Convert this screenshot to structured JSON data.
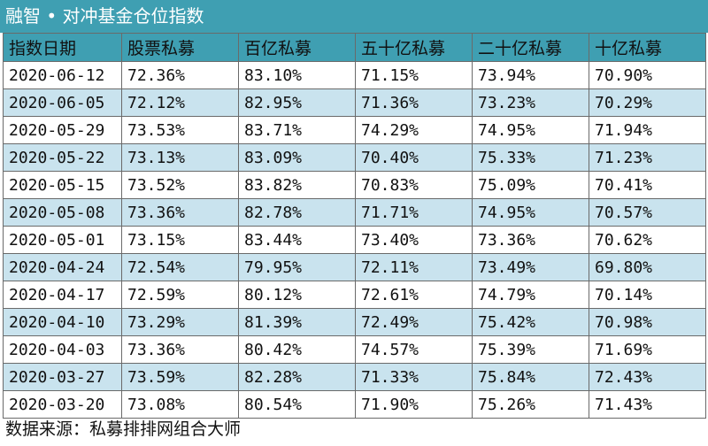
{
  "title": "融智 • 对冲基金仓位指数",
  "source": "数据来源：私募排排网组合大师",
  "chart_data": {
    "type": "table",
    "columns": [
      "指数日期",
      "股票私募",
      "百亿私募",
      "五十亿私募",
      "二十亿私募",
      "十亿私募"
    ],
    "rows": [
      [
        "2020-06-12",
        "72.36%",
        "83.10%",
        "71.15%",
        "73.94%",
        "70.90%"
      ],
      [
        "2020-06-05",
        "72.12%",
        "82.95%",
        "71.36%",
        "73.23%",
        "70.29%"
      ],
      [
        "2020-05-29",
        "73.53%",
        "83.71%",
        "74.29%",
        "74.95%",
        "71.94%"
      ],
      [
        "2020-05-22",
        "73.13%",
        "83.09%",
        "70.40%",
        "75.33%",
        "71.23%"
      ],
      [
        "2020-05-15",
        "73.52%",
        "83.82%",
        "70.83%",
        "75.09%",
        "70.41%"
      ],
      [
        "2020-05-08",
        "73.36%",
        "82.78%",
        "71.71%",
        "74.95%",
        "70.57%"
      ],
      [
        "2020-05-01",
        "73.15%",
        "83.44%",
        "73.40%",
        "73.36%",
        "70.62%"
      ],
      [
        "2020-04-24",
        "72.54%",
        "79.95%",
        "72.11%",
        "73.49%",
        "69.80%"
      ],
      [
        "2020-04-17",
        "72.59%",
        "80.12%",
        "72.61%",
        "74.79%",
        "70.14%"
      ],
      [
        "2020-04-10",
        "73.29%",
        "81.39%",
        "72.49%",
        "75.42%",
        "70.98%"
      ],
      [
        "2020-04-03",
        "73.36%",
        "80.42%",
        "74.57%",
        "75.39%",
        "71.69%"
      ],
      [
        "2020-03-27",
        "73.59%",
        "82.28%",
        "71.33%",
        "75.84%",
        "72.43%"
      ],
      [
        "2020-03-20",
        "73.08%",
        "80.54%",
        "71.90%",
        "75.26%",
        "71.43%"
      ]
    ]
  },
  "colors": {
    "header": "#3f9fb2",
    "band": "#c9e3ee",
    "border": "#6a6a6a"
  }
}
